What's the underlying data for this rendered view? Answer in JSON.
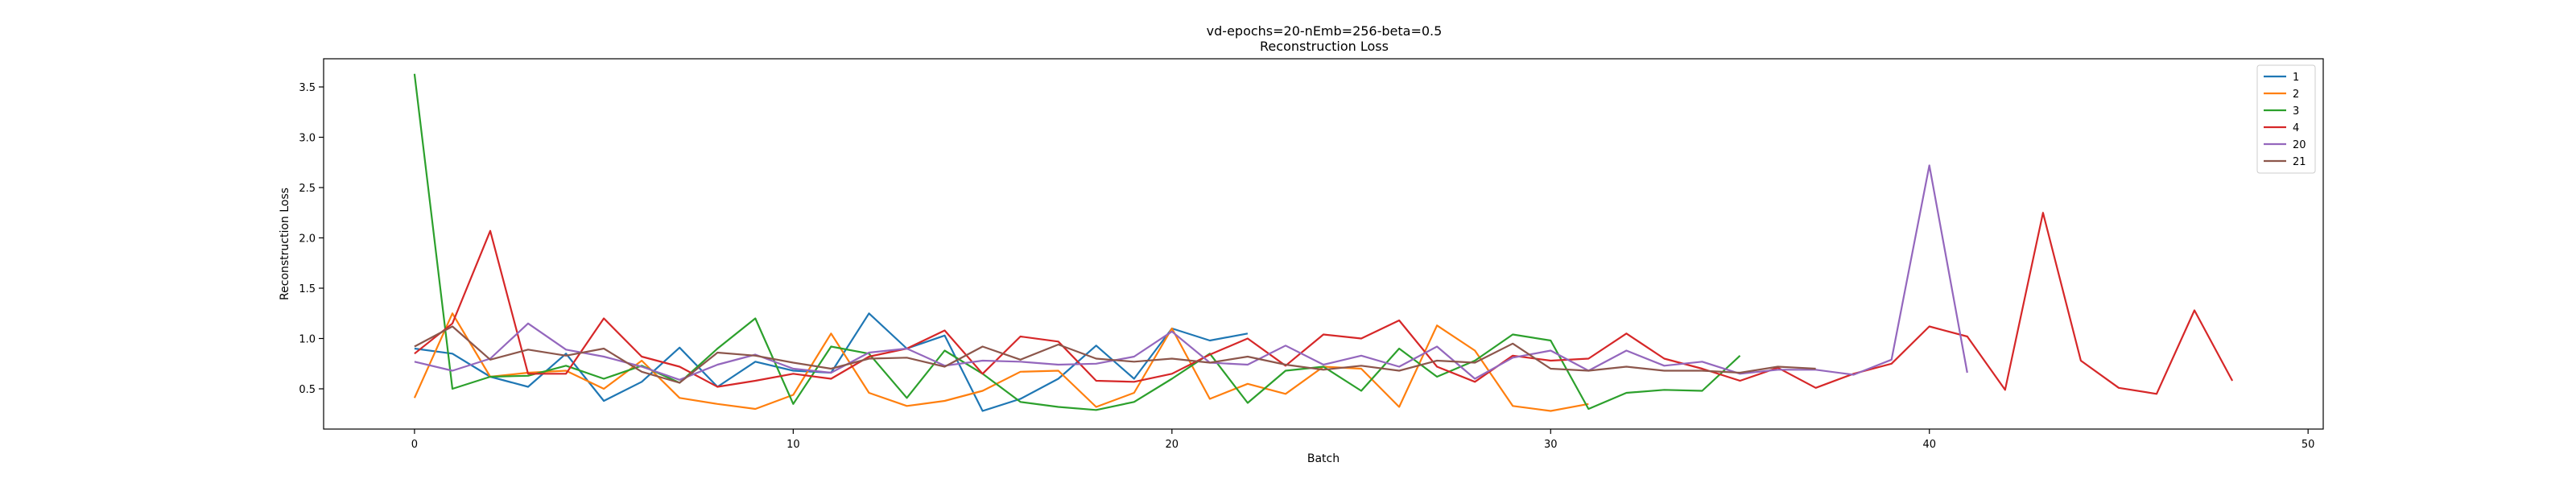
{
  "chart_data": {
    "type": "line",
    "title": "vd-epochs=20-nEmb=256-beta=0.5",
    "subtitle": "Reconstruction Loss",
    "xlabel": "Batch",
    "ylabel": "Reconstruction Loss",
    "xlim": [
      -2.4,
      50.4
    ],
    "ylim": [
      0.1,
      3.78
    ],
    "xticks": [
      0,
      10,
      20,
      30,
      40,
      50
    ],
    "yticks": [
      0.5,
      1.0,
      1.5,
      2.0,
      2.5,
      3.0,
      3.5
    ],
    "xtick_labels": [
      "0",
      "10",
      "20",
      "30",
      "40",
      "50"
    ],
    "ytick_labels": [
      "0.5",
      "1.0",
      "1.5",
      "2.0",
      "2.5",
      "3.0",
      "3.5"
    ],
    "grid": false,
    "legend_position": "top-right",
    "series": [
      {
        "name": "1",
        "color": "#1f77b4",
        "x": [
          0,
          1,
          2,
          3,
          4,
          5,
          6,
          7,
          8,
          9,
          10,
          11,
          12,
          13,
          14,
          15,
          16,
          17,
          18,
          19,
          20,
          21,
          22
        ],
        "values": [
          0.9,
          0.85,
          0.62,
          0.52,
          0.85,
          0.38,
          0.57,
          0.91,
          0.52,
          0.77,
          0.68,
          0.66,
          1.25,
          0.9,
          1.03,
          0.28,
          0.4,
          0.6,
          0.93,
          0.6,
          1.1,
          0.98,
          1.05
        ]
      },
      {
        "name": "2",
        "color": "#ff7f0e",
        "x": [
          0,
          1,
          2,
          3,
          4,
          5,
          6,
          7,
          8,
          9,
          10,
          11,
          12,
          13,
          14,
          15,
          16,
          17,
          18,
          19,
          20,
          21,
          22,
          23,
          24,
          25,
          26,
          27,
          28,
          29,
          30,
          31
        ],
        "values": [
          0.41,
          1.25,
          0.62,
          0.66,
          0.68,
          0.5,
          0.78,
          0.41,
          0.35,
          0.3,
          0.44,
          1.05,
          0.46,
          0.33,
          0.38,
          0.48,
          0.67,
          0.68,
          0.32,
          0.46,
          1.1,
          0.4,
          0.55,
          0.45,
          0.72,
          0.7,
          0.32,
          1.13,
          0.88,
          0.33,
          0.28,
          0.35
        ]
      },
      {
        "name": "3",
        "color": "#2ca02c",
        "x": [
          0,
          1,
          2,
          3,
          4,
          5,
          6,
          7,
          8,
          9,
          10,
          11,
          12,
          13,
          14,
          15,
          16,
          17,
          18,
          19,
          20,
          21,
          22,
          23,
          24,
          25,
          26,
          27,
          28,
          29,
          30,
          31,
          32,
          33,
          34,
          35
        ],
        "values": [
          3.63,
          0.5,
          0.62,
          0.63,
          0.73,
          0.6,
          0.73,
          0.56,
          0.9,
          1.2,
          0.35,
          0.92,
          0.85,
          0.41,
          0.88,
          0.65,
          0.37,
          0.32,
          0.29,
          0.37,
          0.6,
          0.85,
          0.36,
          0.68,
          0.72,
          0.48,
          0.9,
          0.62,
          0.78,
          1.04,
          0.98,
          0.3,
          0.46,
          0.49,
          0.48,
          0.83
        ]
      },
      {
        "name": "4",
        "color": "#d62728",
        "x": [
          0,
          1,
          2,
          3,
          4,
          5,
          6,
          7,
          8,
          9,
          10,
          11,
          12,
          13,
          14,
          15,
          16,
          17,
          18,
          19,
          20,
          21,
          22,
          23,
          24,
          25,
          26,
          27,
          28,
          29,
          30,
          31,
          32,
          33,
          34,
          35,
          36,
          37,
          38,
          39,
          40,
          41,
          42,
          43,
          44,
          45,
          46,
          47,
          48
        ],
        "values": [
          0.85,
          1.15,
          2.07,
          0.65,
          0.65,
          1.2,
          0.82,
          0.72,
          0.52,
          0.58,
          0.65,
          0.6,
          0.82,
          0.9,
          1.08,
          0.65,
          1.02,
          0.97,
          0.58,
          0.57,
          0.65,
          0.84,
          1.0,
          0.73,
          1.04,
          1.0,
          1.18,
          0.72,
          0.57,
          0.83,
          0.78,
          0.8,
          1.05,
          0.8,
          0.7,
          0.58,
          0.71,
          0.51,
          0.65,
          0.75,
          1.12,
          1.02,
          0.49,
          2.25,
          0.78,
          0.51,
          0.45,
          1.28,
          0.58
        ]
      },
      {
        "name": "20",
        "color": "#9467bd",
        "x": [
          0,
          1,
          2,
          3,
          4,
          5,
          6,
          7,
          8,
          9,
          10,
          11,
          12,
          13,
          14,
          15,
          16,
          17,
          18,
          19,
          20,
          21,
          22,
          23,
          24,
          25,
          26,
          27,
          28,
          29,
          30,
          31,
          32,
          33,
          34,
          35,
          36,
          37,
          38,
          39,
          40,
          41
        ],
        "values": [
          0.77,
          0.68,
          0.8,
          1.15,
          0.89,
          0.82,
          0.72,
          0.59,
          0.74,
          0.84,
          0.7,
          0.66,
          0.86,
          0.9,
          0.73,
          0.78,
          0.77,
          0.74,
          0.75,
          0.82,
          1.07,
          0.76,
          0.74,
          0.93,
          0.74,
          0.83,
          0.72,
          0.92,
          0.6,
          0.81,
          0.88,
          0.68,
          0.88,
          0.73,
          0.77,
          0.65,
          0.69,
          0.69,
          0.64,
          0.79,
          2.72,
          0.66
        ]
      },
      {
        "name": "21",
        "color": "#8c564b",
        "x": [
          0,
          1,
          2,
          3,
          4,
          5,
          6,
          7,
          8,
          9,
          10,
          11,
          12,
          13,
          14,
          15,
          16,
          17,
          18,
          19,
          20,
          21,
          22,
          23,
          24,
          25,
          26,
          27,
          28,
          29,
          30,
          31,
          32,
          33,
          34,
          35,
          36,
          37
        ],
        "values": [
          0.92,
          1.12,
          0.79,
          0.89,
          0.83,
          0.9,
          0.67,
          0.56,
          0.86,
          0.83,
          0.76,
          0.7,
          0.8,
          0.81,
          0.72,
          0.92,
          0.79,
          0.94,
          0.8,
          0.77,
          0.8,
          0.76,
          0.82,
          0.74,
          0.69,
          0.73,
          0.68,
          0.78,
          0.76,
          0.95,
          0.7,
          0.68,
          0.72,
          0.68,
          0.68,
          0.66,
          0.72,
          0.7
        ]
      }
    ]
  }
}
